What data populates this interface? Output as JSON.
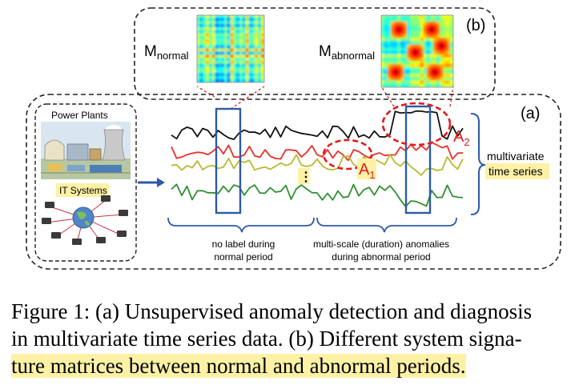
{
  "panel_b": {
    "label": "(b)",
    "m_normal": {
      "base": "M",
      "sub": "normal"
    },
    "m_abnormal": {
      "base": "M",
      "sub": "abnormal"
    }
  },
  "panel_a": {
    "label": "(a)",
    "systems": {
      "power_plants": "Power Plants",
      "it_systems": "IT Systems"
    },
    "anomaly_1": {
      "base": "A",
      "sub": "1"
    },
    "anomaly_2": {
      "base": "A",
      "sub": "2"
    },
    "ellipsis": "⋮",
    "right_label": {
      "line1": "multivariate",
      "line2": "time series"
    },
    "bottom_left": {
      "line1": "no label during",
      "line2": "normal period"
    },
    "bottom_right": {
      "line1": "multi-scale (duration) anomalies",
      "line2": "during abnormal period"
    }
  },
  "caption": {
    "line1": "Figure 1: (a) Unsupervised anomaly detection and diagnosis",
    "line2": "in multivariate time series data. (b) Different system signa-",
    "line3": "ture matrices between normal and abnormal periods."
  },
  "colors": {
    "series_black": "#111111",
    "series_red": "#e8302a",
    "series_yellow": "#b9b832",
    "series_green": "#2f8f2f",
    "window_box": "#2e5aa8",
    "anomaly_ellipse": "#e21b1b",
    "highlight": "#fdf1a6"
  }
}
